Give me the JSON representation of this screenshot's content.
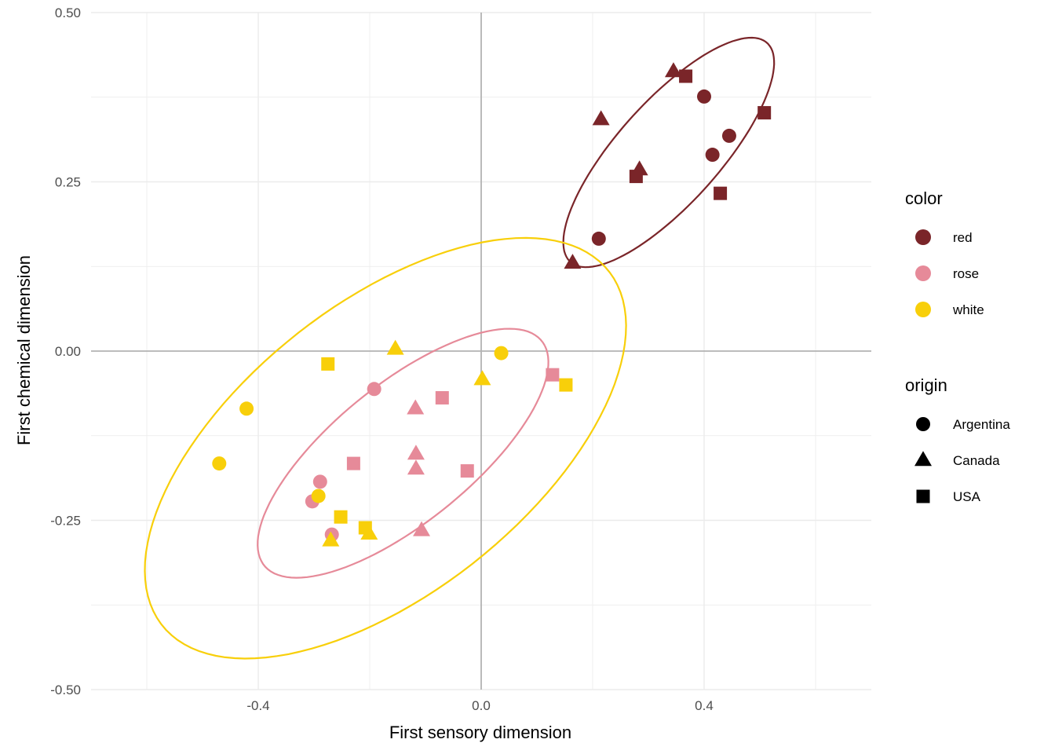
{
  "chart_data": {
    "type": "scatter",
    "xlabel": "First sensory dimension",
    "ylabel": "First chemical dimension",
    "xlim": [
      -0.7,
      0.7
    ],
    "ylim": [
      -0.5,
      0.5
    ],
    "x_ticks": [
      -0.4,
      0.0,
      0.4
    ],
    "x_tick_labels": [
      "-0.4",
      "0.0",
      "0.4"
    ],
    "y_ticks": [
      -0.5,
      -0.25,
      0.0,
      0.25,
      0.5
    ],
    "y_tick_labels": [
      "-0.50",
      "-0.25",
      "0.00",
      "0.25",
      "0.50"
    ],
    "reference_lines": {
      "x": 0,
      "y": 0
    },
    "grid": true,
    "colors": {
      "red": "#7a2529",
      "rose": "#e68a99",
      "white": "#f8cf0a"
    },
    "legend": {
      "position": "right",
      "color_title": "color",
      "color_items": [
        {
          "key": "red",
          "label": "red"
        },
        {
          "key": "rose",
          "label": "rose"
        },
        {
          "key": "white",
          "label": "white"
        }
      ],
      "shape_title": "origin",
      "shape_items": [
        {
          "key": "Argentina",
          "label": "Argentina",
          "shape": "circle"
        },
        {
          "key": "Canada",
          "label": "Canada",
          "shape": "triangle"
        },
        {
          "key": "USA",
          "label": "USA",
          "shape": "square"
        }
      ]
    },
    "points": [
      {
        "x": 0.4,
        "y": 0.376,
        "color": "red",
        "origin": "Argentina"
      },
      {
        "x": 0.445,
        "y": 0.318,
        "color": "red",
        "origin": "Argentina"
      },
      {
        "x": 0.415,
        "y": 0.29,
        "color": "red",
        "origin": "Argentina"
      },
      {
        "x": 0.211,
        "y": 0.166,
        "color": "red",
        "origin": "Argentina"
      },
      {
        "x": 0.345,
        "y": 0.413,
        "color": "red",
        "origin": "Canada"
      },
      {
        "x": 0.215,
        "y": 0.342,
        "color": "red",
        "origin": "Canada"
      },
      {
        "x": 0.284,
        "y": 0.268,
        "color": "red",
        "origin": "Canada"
      },
      {
        "x": 0.164,
        "y": 0.13,
        "color": "red",
        "origin": "Canada"
      },
      {
        "x": 0.367,
        "y": 0.406,
        "color": "red",
        "origin": "USA"
      },
      {
        "x": 0.508,
        "y": 0.352,
        "color": "red",
        "origin": "USA"
      },
      {
        "x": 0.278,
        "y": 0.258,
        "color": "red",
        "origin": "USA"
      },
      {
        "x": 0.429,
        "y": 0.233,
        "color": "red",
        "origin": "USA"
      },
      {
        "x": -0.192,
        "y": -0.056,
        "color": "rose",
        "origin": "Argentina"
      },
      {
        "x": -0.289,
        "y": -0.193,
        "color": "rose",
        "origin": "Argentina"
      },
      {
        "x": -0.303,
        "y": -0.222,
        "color": "rose",
        "origin": "Argentina"
      },
      {
        "x": -0.268,
        "y": -0.271,
        "color": "rose",
        "origin": "Argentina"
      },
      {
        "x": -0.118,
        "y": -0.085,
        "color": "rose",
        "origin": "Canada"
      },
      {
        "x": -0.117,
        "y": -0.152,
        "color": "rose",
        "origin": "Canada"
      },
      {
        "x": -0.117,
        "y": -0.174,
        "color": "rose",
        "origin": "Canada"
      },
      {
        "x": -0.107,
        "y": -0.265,
        "color": "rose",
        "origin": "Canada"
      },
      {
        "x": -0.07,
        "y": -0.069,
        "color": "rose",
        "origin": "USA"
      },
      {
        "x": -0.229,
        "y": -0.166,
        "color": "rose",
        "origin": "USA"
      },
      {
        "x": -0.025,
        "y": -0.177,
        "color": "rose",
        "origin": "USA"
      },
      {
        "x": 0.128,
        "y": -0.035,
        "color": "rose",
        "origin": "USA"
      },
      {
        "x": 0.036,
        "y": -0.003,
        "color": "white",
        "origin": "Argentina"
      },
      {
        "x": -0.421,
        "y": -0.085,
        "color": "white",
        "origin": "Argentina"
      },
      {
        "x": -0.47,
        "y": -0.166,
        "color": "white",
        "origin": "Argentina"
      },
      {
        "x": -0.292,
        "y": -0.214,
        "color": "white",
        "origin": "Argentina"
      },
      {
        "x": -0.154,
        "y": 0.003,
        "color": "white",
        "origin": "Canada"
      },
      {
        "x": 0.002,
        "y": -0.042,
        "color": "white",
        "origin": "Canada"
      },
      {
        "x": -0.27,
        "y": -0.28,
        "color": "white",
        "origin": "Canada"
      },
      {
        "x": -0.201,
        "y": -0.27,
        "color": "white",
        "origin": "Canada"
      },
      {
        "x": -0.275,
        "y": -0.019,
        "color": "white",
        "origin": "USA"
      },
      {
        "x": 0.152,
        "y": -0.05,
        "color": "white",
        "origin": "USA"
      },
      {
        "x": -0.252,
        "y": -0.245,
        "color": "white",
        "origin": "USA"
      },
      {
        "x": -0.208,
        "y": -0.261,
        "color": "white",
        "origin": "USA"
      }
    ],
    "ellipses": [
      {
        "color": "red",
        "cx": 0.3365,
        "cy": 0.2934,
        "rx": 0.24,
        "ry": 0.083,
        "rotation_deg": 41
      },
      {
        "color": "rose",
        "cx": -0.1403,
        "cy": -0.1509,
        "rx": 0.3,
        "ry": 0.109,
        "rotation_deg": 32
      },
      {
        "color": "white",
        "cx": -0.1718,
        "cy": -0.1435,
        "rx": 0.481,
        "ry": 0.227,
        "rotation_deg": 30
      }
    ]
  }
}
